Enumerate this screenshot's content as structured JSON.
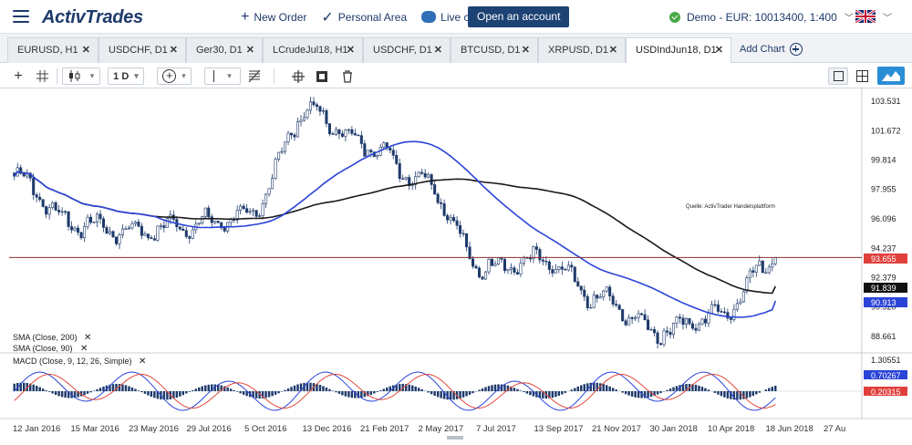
{
  "brand": {
    "logo_text": "ActivTrades"
  },
  "topnav": {
    "new_order": "New Order",
    "personal_area": "Personal Area",
    "live_chat": "Live chat",
    "open_account": "Open an account",
    "account": "Demo - EUR: 10013400, 1:400",
    "language_flag": "uk-flag-icon"
  },
  "tabs": [
    {
      "label": "EURUSD, H1"
    },
    {
      "label": "USDCHF, D1"
    },
    {
      "label": "Ger30, D1"
    },
    {
      "label": "LCrudeJul18, H1"
    },
    {
      "label": "USDCHF, D1"
    },
    {
      "label": "BTCUSD, D1"
    },
    {
      "label": "XRPUSD, D1"
    },
    {
      "label": "USDIndJun18, D1"
    }
  ],
  "active_tab_index": 7,
  "add_chart": "Add Chart",
  "toolbar": {
    "timeframe": "1 D"
  },
  "chart": {
    "source_note": "Quelle: ActivTrader Handelsplattform",
    "indicators": {
      "sma200": "SMA (Close, 200)",
      "sma90": "SMA (Close, 90)",
      "macd": "MACD (Close, 9, 12, 26, Simple)"
    },
    "price_axis": [
      "103.531",
      "101.672",
      "99.814",
      "97.955",
      "96.096",
      "94.237",
      "92.379",
      "90.520",
      "88.661"
    ],
    "price_labels": {
      "current": "93.655",
      "sma200_value": "91.839",
      "sma90_value": "90.913"
    },
    "macd_axis": {
      "top": "1.30551",
      "val1": "0.70267",
      "val2": "0.20315"
    },
    "time_axis": [
      "12 Jan 2016",
      "15 Mar 2016",
      "23 May 2016",
      "29 Jul 2016",
      "5 Oct 2016",
      "13 Dec 2016",
      "21 Feb 2017",
      "2 May 2017",
      "7 Jul 2017",
      "13 Sep 2017",
      "21 Nov 2017",
      "30 Jan 2018",
      "10 Apr 2018",
      "18 Jun 2018",
      "27 Au"
    ],
    "colors": {
      "candle": "#1e3a6b",
      "sma90": "#2b44d8",
      "sma200": "#1a1a1a",
      "price_line": "#8b2d2d",
      "price_label_bg": "#e0403c",
      "sma90_label_bg": "#2b44d8",
      "sma200_label_bg": "#111111",
      "macd_signal": "#e04a3c",
      "macd_line": "#2b44d8"
    }
  },
  "chart_data": {
    "type": "candlestick",
    "title": "USDIndJun18, D1",
    "ylim": [
      88.0,
      104.5
    ],
    "current_price": 93.655,
    "close_series": [
      {
        "x": "12 Jan 2016",
        "y": 98.8
      },
      {
        "x": "15 Mar 2016",
        "y": 95.8
      },
      {
        "x": "23 May 2016",
        "y": 95.3
      },
      {
        "x": "29 Jul 2016",
        "y": 95.7
      },
      {
        "x": "5 Oct 2016",
        "y": 96.3
      },
      {
        "x": "13 Dec 2016",
        "y": 102.9
      },
      {
        "x": "21 Feb 2017",
        "y": 100.8
      },
      {
        "x": "2 May 2017",
        "y": 98.5
      },
      {
        "x": "7 Jul 2017",
        "y": 93.0
      },
      {
        "x": "13 Sep 2017",
        "y": 93.5
      },
      {
        "x": "21 Nov 2017",
        "y": 91.0
      },
      {
        "x": "30 Jan 2018",
        "y": 89.0
      },
      {
        "x": "10 Apr 2018",
        "y": 90.0
      },
      {
        "x": "18 Jun 2018",
        "y": 93.655
      }
    ],
    "sma90_end": 90.913,
    "sma200_end": 91.839
  }
}
